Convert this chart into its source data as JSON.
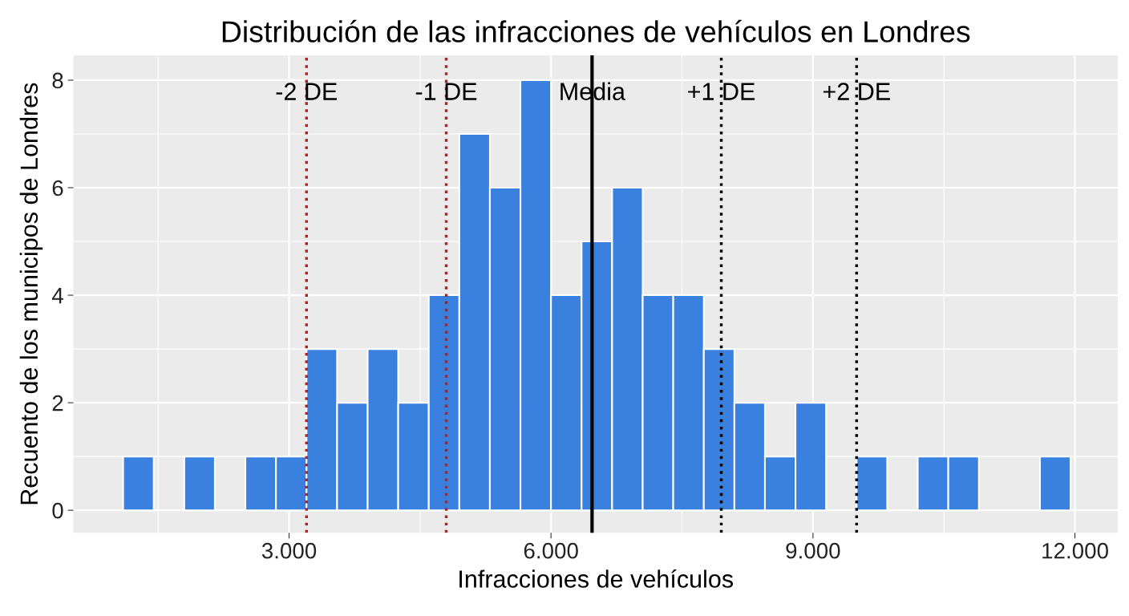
{
  "chart_data": {
    "type": "histogram",
    "title": "Distribución de las infracciones de vehículos en Londres",
    "xlabel": "Infracciones de vehículos",
    "ylabel": "Recuento de los municipos de Londres",
    "bins": [
      1100,
      1450,
      1800,
      2150,
      2500,
      2850,
      3200,
      3550,
      3900,
      4250,
      4600,
      4950,
      5300,
      5650,
      6000,
      6350,
      6700,
      7050,
      7400,
      7750,
      8100,
      8450,
      8800,
      9150,
      9500,
      9850,
      10200,
      10550,
      10900,
      11250,
      11600,
      11950
    ],
    "values": [
      1,
      0,
      1,
      0,
      1,
      1,
      3,
      2,
      3,
      2,
      4,
      7,
      6,
      8,
      4,
      5,
      6,
      4,
      4,
      3,
      2,
      1,
      2,
      0,
      1,
      0,
      1,
      1,
      0,
      0,
      1
    ],
    "color": "#3a80de",
    "xlim": [
      530,
      12490
    ],
    "xticks": [
      {
        "value": 3000,
        "label": "3.000"
      },
      {
        "value": 6000,
        "label": "6.000"
      },
      {
        "value": 9000,
        "label": "9.000"
      },
      {
        "value": 12000,
        "label": "12.000"
      }
    ],
    "ylim": [
      -0.42,
      8.46
    ],
    "yticks": [
      0,
      2,
      4,
      6,
      8
    ],
    "grid": true,
    "ref_lines": [
      {
        "axis": "x",
        "value": 3200,
        "label": "-2 DE",
        "color": "#b22222",
        "line_style": "dotted"
      },
      {
        "axis": "x",
        "value": 4800,
        "label": "-1 DE",
        "color": "#b22222",
        "line_style": "dotted"
      },
      {
        "axis": "x",
        "value": 6470,
        "label": "Media",
        "color": "#000000",
        "line_style": "solid"
      },
      {
        "axis": "x",
        "value": 7950,
        "label": "+1 DE",
        "color": "#000000",
        "line_style": "dotted"
      },
      {
        "axis": "x",
        "value": 9500,
        "label": "+2 DE",
        "color": "#000000",
        "line_style": "dotted"
      }
    ]
  }
}
